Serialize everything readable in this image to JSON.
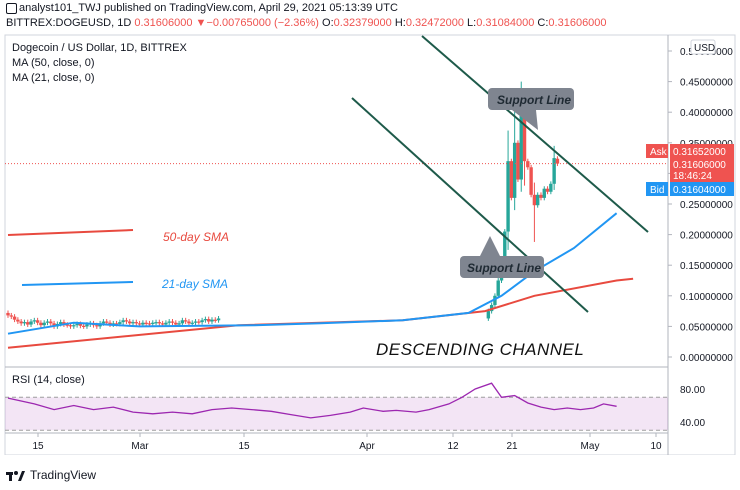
{
  "header": {
    "publisher": "analyst101_TWJ published on TradingView.com, April 29, 2021 05:13:39 UTC",
    "symbol": "BITTREX:DOGEUSD, 1D",
    "last": "0.31606000",
    "change": "−0.00765000 (−2.36%)",
    "o_label": "O:",
    "o_val": "0.32379000",
    "h_label": "H:",
    "h_val": "0.32472000",
    "l_label": "L:",
    "l_val": "0.31084000",
    "c_label": "C:",
    "c_val": "0.31606000"
  },
  "legend": {
    "title": "Dogecoin / US Dollar, 1D, BITTREX",
    "ma50": "MA (50, close, 0)",
    "ma21": "MA (21, close, 0)"
  },
  "annotations": {
    "support_top": "Support Line",
    "support_bottom": "Support Line",
    "sma50": "50-day SMA",
    "sma21": "21-day SMA",
    "channel": "DESCENDING CHANNEL"
  },
  "price_axis": {
    "currency": "USD",
    "ticks": [
      "0.50000000",
      "0.45000000",
      "0.40000000",
      "0.35000000",
      "0.30000000",
      "0.25000000",
      "0.20000000",
      "0.15000000",
      "0.10000000",
      "0.05000000",
      "0.00000000"
    ],
    "ask_label": "Ask",
    "ask": "0.31652000",
    "last": "0.31606000",
    "countdown": "18:46:24",
    "bid_label": "Bid",
    "bid": "0.31604000"
  },
  "rsi": {
    "title": "RSI (14, close)",
    "ticks": [
      "80.00",
      "40.00"
    ],
    "upper": 70,
    "lower": 30
  },
  "time_axis": [
    "15",
    "Mar",
    "15",
    "Apr",
    "12",
    "21",
    "May",
    "10"
  ],
  "footer": {
    "brand": "TradingView"
  },
  "colors": {
    "up": "#26a69a",
    "down": "#ef5350",
    "ma50": "#e84a3f",
    "ma21": "#2196f3",
    "rsi": "#9c27b0",
    "channel": "#1e5a4a"
  },
  "chart_data": {
    "type": "candlestick",
    "title": "Dogecoin / US Dollar, 1D, BITTREX",
    "ylim": [
      -0.01,
      0.52
    ],
    "candles_feb_apr": [
      {
        "o": 0.072,
        "c": 0.068
      },
      {
        "o": 0.068,
        "c": 0.066
      },
      {
        "o": 0.066,
        "c": 0.061
      },
      {
        "o": 0.061,
        "c": 0.058
      },
      {
        "o": 0.058,
        "c": 0.055
      },
      {
        "o": 0.055,
        "c": 0.057
      },
      {
        "o": 0.057,
        "c": 0.053
      },
      {
        "o": 0.053,
        "c": 0.058
      },
      {
        "o": 0.058,
        "c": 0.06
      },
      {
        "o": 0.06,
        "c": 0.056
      },
      {
        "o": 0.056,
        "c": 0.052
      },
      {
        "o": 0.052,
        "c": 0.056
      },
      {
        "o": 0.056,
        "c": 0.058
      },
      {
        "o": 0.058,
        "c": 0.055
      },
      {
        "o": 0.055,
        "c": 0.05
      },
      {
        "o": 0.05,
        "c": 0.054
      },
      {
        "o": 0.054,
        "c": 0.057
      },
      {
        "o": 0.057,
        "c": 0.053
      },
      {
        "o": 0.053,
        "c": 0.052
      },
      {
        "o": 0.052,
        "c": 0.05
      },
      {
        "o": 0.05,
        "c": 0.052
      },
      {
        "o": 0.052,
        "c": 0.054
      },
      {
        "o": 0.054,
        "c": 0.051
      },
      {
        "o": 0.051,
        "c": 0.05
      },
      {
        "o": 0.05,
        "c": 0.053
      },
      {
        "o": 0.053,
        "c": 0.055
      },
      {
        "o": 0.055,
        "c": 0.052
      },
      {
        "o": 0.052,
        "c": 0.05
      },
      {
        "o": 0.05,
        "c": 0.055
      },
      {
        "o": 0.055,
        "c": 0.058
      },
      {
        "o": 0.058,
        "c": 0.056
      },
      {
        "o": 0.056,
        "c": 0.053
      },
      {
        "o": 0.053,
        "c": 0.055
      },
      {
        "o": 0.055,
        "c": 0.054
      },
      {
        "o": 0.054,
        "c": 0.057
      },
      {
        "o": 0.057,
        "c": 0.06
      },
      {
        "o": 0.06,
        "c": 0.058
      },
      {
        "o": 0.058,
        "c": 0.055
      },
      {
        "o": 0.055,
        "c": 0.057
      },
      {
        "o": 0.057,
        "c": 0.055
      },
      {
        "o": 0.055,
        "c": 0.053
      },
      {
        "o": 0.053,
        "c": 0.056
      },
      {
        "o": 0.056,
        "c": 0.055
      },
      {
        "o": 0.055,
        "c": 0.054
      },
      {
        "o": 0.054,
        "c": 0.056
      },
      {
        "o": 0.056,
        "c": 0.057
      },
      {
        "o": 0.057,
        "c": 0.055
      },
      {
        "o": 0.055,
        "c": 0.053
      },
      {
        "o": 0.053,
        "c": 0.056
      },
      {
        "o": 0.056,
        "c": 0.058
      },
      {
        "o": 0.058,
        "c": 0.056
      },
      {
        "o": 0.056,
        "c": 0.053
      },
      {
        "o": 0.053,
        "c": 0.055
      },
      {
        "o": 0.055,
        "c": 0.06
      },
      {
        "o": 0.06,
        "c": 0.058
      },
      {
        "o": 0.058,
        "c": 0.055
      },
      {
        "o": 0.055,
        "c": 0.056
      },
      {
        "o": 0.056,
        "c": 0.058
      },
      {
        "o": 0.058,
        "c": 0.057
      },
      {
        "o": 0.057,
        "c": 0.06
      },
      {
        "o": 0.06,
        "c": 0.062
      },
      {
        "o": 0.062,
        "c": 0.058
      },
      {
        "o": 0.058,
        "c": 0.061
      },
      {
        "o": 0.061,
        "c": 0.06
      },
      {
        "o": 0.06,
        "c": 0.063
      }
    ],
    "candles_april": [
      {
        "o": 0.063,
        "c": 0.075
      },
      {
        "o": 0.075,
        "c": 0.085
      },
      {
        "o": 0.085,
        "c": 0.1
      },
      {
        "o": 0.1,
        "c": 0.125
      },
      {
        "o": 0.125,
        "c": 0.16
      },
      {
        "o": 0.16,
        "c": 0.205
      },
      {
        "o": 0.205,
        "c": 0.32
      },
      {
        "o": 0.32,
        "c": 0.26
      },
      {
        "o": 0.26,
        "c": 0.35
      },
      {
        "o": 0.35,
        "c": 0.29
      },
      {
        "o": 0.29,
        "c": 0.4
      },
      {
        "o": 0.4,
        "c": 0.32
      },
      {
        "o": 0.32,
        "c": 0.31
      },
      {
        "o": 0.31,
        "c": 0.265
      },
      {
        "o": 0.265,
        "c": 0.248
      },
      {
        "o": 0.248,
        "c": 0.265
      },
      {
        "o": 0.265,
        "c": 0.26
      },
      {
        "o": 0.26,
        "c": 0.275
      },
      {
        "o": 0.275,
        "c": 0.27
      },
      {
        "o": 0.27,
        "c": 0.283
      },
      {
        "o": 0.283,
        "c": 0.325
      },
      {
        "o": 0.324,
        "c": 0.316
      }
    ],
    "ma50": [
      [
        0,
        0.015
      ],
      [
        70,
        0.052
      ],
      [
        120,
        0.06
      ],
      [
        145,
        0.075
      ],
      [
        160,
        0.1
      ],
      [
        185,
        0.125
      ],
      [
        190,
        0.128
      ]
    ],
    "ma21": [
      [
        0,
        0.038
      ],
      [
        20,
        0.056
      ],
      [
        40,
        0.05
      ],
      [
        75,
        0.052
      ],
      [
        95,
        0.055
      ],
      [
        120,
        0.06
      ],
      [
        140,
        0.072
      ],
      [
        150,
        0.1
      ],
      [
        160,
        0.14
      ],
      [
        172,
        0.178
      ],
      [
        185,
        0.235
      ]
    ],
    "rsi": [
      [
        0,
        69
      ],
      [
        8,
        62
      ],
      [
        14,
        55
      ],
      [
        20,
        60
      ],
      [
        26,
        55
      ],
      [
        32,
        58
      ],
      [
        38,
        52
      ],
      [
        44,
        50
      ],
      [
        50,
        52
      ],
      [
        56,
        50
      ],
      [
        62,
        55
      ],
      [
        68,
        57
      ],
      [
        74,
        55
      ],
      [
        80,
        53
      ],
      [
        86,
        49
      ],
      [
        92,
        45
      ],
      [
        98,
        48
      ],
      [
        104,
        52
      ],
      [
        108,
        57
      ],
      [
        114,
        53
      ],
      [
        118,
        54
      ],
      [
        124,
        52
      ],
      [
        128,
        55
      ],
      [
        134,
        62
      ],
      [
        138,
        70
      ],
      [
        142,
        80
      ],
      [
        147,
        87
      ],
      [
        150,
        70
      ],
      [
        154,
        72
      ],
      [
        158,
        63
      ],
      [
        162,
        58
      ],
      [
        166,
        55
      ],
      [
        170,
        57
      ],
      [
        174,
        55
      ],
      [
        178,
        57
      ],
      [
        181,
        62
      ],
      [
        185,
        59
      ]
    ]
  }
}
